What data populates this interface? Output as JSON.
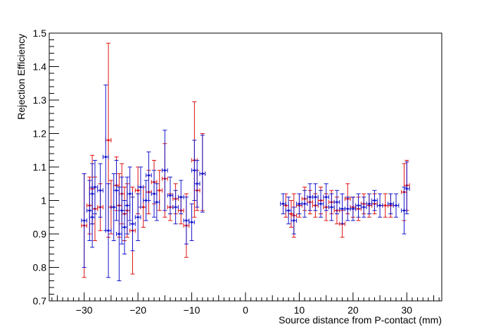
{
  "chart_data": {
    "type": "scatter",
    "title": "",
    "xlabel": "Source distance from P-contact (mm)",
    "ylabel": "Rejection Efficiency",
    "xlim": [
      -36.5,
      36.5
    ],
    "ylim": [
      0.7,
      1.5
    ],
    "x_ticks": [
      -30,
      -20,
      -10,
      0,
      10,
      20,
      30
    ],
    "x_tick_labels": [
      "−30",
      "−20",
      "−10",
      "0",
      "10",
      "20",
      "30"
    ],
    "y_ticks": [
      0.7,
      0.8,
      0.9,
      1.0,
      1.1,
      1.2,
      1.3,
      1.4,
      1.5
    ],
    "y_tick_labels": [
      "0.7",
      "0.8",
      "0.9",
      "1",
      "1.1",
      "1.2",
      "1.3",
      "1.4",
      "1.5"
    ],
    "grid": false,
    "legend": "none",
    "x_error": 0.5,
    "series": [
      {
        "color": "#dd1111",
        "points": [
          {
            "x": -30.0,
            "y": 0.925,
            "ylo": 0.77,
            "yhi": 1.08
          },
          {
            "x": -29.0,
            "y": 0.985,
            "ylo": 0.9,
            "yhi": 1.07
          },
          {
            "x": -28.5,
            "y": 1.035,
            "ylo": 0.93,
            "yhi": 1.135
          },
          {
            "x": -28.0,
            "y": 0.975,
            "ylo": 0.88,
            "yhi": 1.07
          },
          {
            "x": -27.0,
            "y": 0.98,
            "ylo": 0.91,
            "yhi": 1.05
          },
          {
            "x": -25.5,
            "y": 1.18,
            "ylo": 0.89,
            "yhi": 1.47
          },
          {
            "x": -25.0,
            "y": 0.98,
            "ylo": 0.9,
            "yhi": 1.06
          },
          {
            "x": -24.0,
            "y": 1.045,
            "ylo": 0.97,
            "yhi": 1.13
          },
          {
            "x": -23.5,
            "y": 0.985,
            "ylo": 0.89,
            "yhi": 1.08
          },
          {
            "x": -23.0,
            "y": 1.02,
            "ylo": 0.93,
            "yhi": 1.11
          },
          {
            "x": -22.5,
            "y": 0.96,
            "ylo": 0.88,
            "yhi": 1.04
          },
          {
            "x": -22.0,
            "y": 0.97,
            "ylo": 0.89,
            "yhi": 1.05
          },
          {
            "x": -21.0,
            "y": 0.91,
            "ylo": 0.78,
            "yhi": 1.04
          },
          {
            "x": -20.0,
            "y": 1.03,
            "ylo": 0.96,
            "yhi": 1.1
          },
          {
            "x": -19.0,
            "y": 0.98,
            "ylo": 0.92,
            "yhi": 1.04
          },
          {
            "x": -18.0,
            "y": 1.025,
            "ylo": 0.96,
            "yhi": 1.09
          },
          {
            "x": -17.0,
            "y": 1.055,
            "ylo": 0.99,
            "yhi": 1.12
          },
          {
            "x": -16.0,
            "y": 1.03,
            "ylo": 0.97,
            "yhi": 1.09
          },
          {
            "x": -15.0,
            "y": 1.065,
            "ylo": 0.95,
            "yhi": 1.17
          },
          {
            "x": -14.0,
            "y": 0.98,
            "ylo": 0.94,
            "yhi": 1.02
          },
          {
            "x": -13.0,
            "y": 1.005,
            "ylo": 0.96,
            "yhi": 1.05
          },
          {
            "x": -12.0,
            "y": 0.97,
            "ylo": 0.93,
            "yhi": 1.01
          },
          {
            "x": -11.0,
            "y": 0.925,
            "ylo": 0.83,
            "yhi": 1.02
          },
          {
            "x": -9.5,
            "y": 1.12,
            "ylo": 0.95,
            "yhi": 1.295
          },
          {
            "x": -9.0,
            "y": 1.03,
            "ylo": 0.97,
            "yhi": 1.09
          },
          {
            "x": -8.0,
            "y": 1.08,
            "ylo": 0.97,
            "yhi": 1.2
          },
          {
            "x": 7.5,
            "y": 0.985,
            "ylo": 0.95,
            "yhi": 1.02
          },
          {
            "x": 8.5,
            "y": 0.96,
            "ylo": 0.92,
            "yhi": 1.0
          },
          {
            "x": 9.0,
            "y": 0.955,
            "ylo": 0.89,
            "yhi": 1.02
          },
          {
            "x": 10.0,
            "y": 0.985,
            "ylo": 0.95,
            "yhi": 1.02
          },
          {
            "x": 11.0,
            "y": 1.005,
            "ylo": 0.97,
            "yhi": 1.04
          },
          {
            "x": 12.0,
            "y": 0.995,
            "ylo": 0.96,
            "yhi": 1.03
          },
          {
            "x": 13.0,
            "y": 0.985,
            "ylo": 0.95,
            "yhi": 1.02
          },
          {
            "x": 14.0,
            "y": 1.0,
            "ylo": 0.96,
            "yhi": 1.04
          },
          {
            "x": 15.0,
            "y": 0.98,
            "ylo": 0.94,
            "yhi": 1.02
          },
          {
            "x": 16.0,
            "y": 0.995,
            "ylo": 0.96,
            "yhi": 1.03
          },
          {
            "x": 17.0,
            "y": 0.97,
            "ylo": 0.93,
            "yhi": 1.01
          },
          {
            "x": 18.0,
            "y": 0.93,
            "ylo": 0.89,
            "yhi": 0.97
          },
          {
            "x": 19.0,
            "y": 1.005,
            "ylo": 0.96,
            "yhi": 1.05
          },
          {
            "x": 20.0,
            "y": 0.98,
            "ylo": 0.95,
            "yhi": 1.01
          },
          {
            "x": 21.0,
            "y": 0.975,
            "ylo": 0.94,
            "yhi": 1.01
          },
          {
            "x": 22.0,
            "y": 0.99,
            "ylo": 0.96,
            "yhi": 1.02
          },
          {
            "x": 23.0,
            "y": 0.985,
            "ylo": 0.95,
            "yhi": 1.02
          },
          {
            "x": 24.0,
            "y": 0.99,
            "ylo": 0.96,
            "yhi": 1.02
          },
          {
            "x": 26.0,
            "y": 0.985,
            "ylo": 0.95,
            "yhi": 1.02
          },
          {
            "x": 27.0,
            "y": 0.985,
            "ylo": 0.95,
            "yhi": 1.02
          },
          {
            "x": 29.5,
            "y": 1.025,
            "ylo": 0.94,
            "yhi": 1.11
          },
          {
            "x": 30.0,
            "y": 1.045,
            "ylo": 0.97,
            "yhi": 1.12
          }
        ]
      },
      {
        "color": "#1515cc",
        "points": [
          {
            "x": -30.0,
            "y": 0.94,
            "ylo": 0.8,
            "yhi": 1.08
          },
          {
            "x": -29.0,
            "y": 0.97,
            "ylo": 0.88,
            "yhi": 1.06
          },
          {
            "x": -28.5,
            "y": 1.02,
            "ylo": 0.93,
            "yhi": 1.11
          },
          {
            "x": -28.0,
            "y": 1.04,
            "ylo": 0.96,
            "yhi": 1.12
          },
          {
            "x": -28.5,
            "y": 0.95,
            "ylo": 0.86,
            "yhi": 1.04
          },
          {
            "x": -27.0,
            "y": 1.03,
            "ylo": 0.95,
            "yhi": 1.11
          },
          {
            "x": -26.0,
            "y": 1.13,
            "ylo": 0.91,
            "yhi": 1.345
          },
          {
            "x": -25.5,
            "y": 0.91,
            "ylo": 0.77,
            "yhi": 1.05
          },
          {
            "x": -24.5,
            "y": 0.98,
            "ylo": 0.88,
            "yhi": 1.08
          },
          {
            "x": -24.0,
            "y": 1.03,
            "ylo": 0.94,
            "yhi": 1.12
          },
          {
            "x": -23.5,
            "y": 0.9,
            "ylo": 0.76,
            "yhi": 1.04
          },
          {
            "x": -23.0,
            "y": 0.97,
            "ylo": 0.87,
            "yhi": 1.07
          },
          {
            "x": -22.5,
            "y": 0.92,
            "ylo": 0.84,
            "yhi": 1.0
          },
          {
            "x": -22.0,
            "y": 0.985,
            "ylo": 0.9,
            "yhi": 1.07
          },
          {
            "x": -21.5,
            "y": 1.02,
            "ylo": 0.94,
            "yhi": 1.1
          },
          {
            "x": -21.0,
            "y": 0.93,
            "ylo": 0.85,
            "yhi": 1.01
          },
          {
            "x": -20.0,
            "y": 0.95,
            "ylo": 0.88,
            "yhi": 1.02
          },
          {
            "x": -19.5,
            "y": 1.04,
            "ylo": 0.98,
            "yhi": 1.1
          },
          {
            "x": -18.5,
            "y": 1.0,
            "ylo": 0.94,
            "yhi": 1.06
          },
          {
            "x": -18.0,
            "y": 1.075,
            "ylo": 1.0,
            "yhi": 1.145
          },
          {
            "x": -17.0,
            "y": 1.02,
            "ylo": 0.95,
            "yhi": 1.09
          },
          {
            "x": -16.5,
            "y": 0.995,
            "ylo": 0.94,
            "yhi": 1.05
          },
          {
            "x": -15.0,
            "y": 1.09,
            "ylo": 0.97,
            "yhi": 1.21
          },
          {
            "x": -14.0,
            "y": 1.015,
            "ylo": 0.96,
            "yhi": 1.07
          },
          {
            "x": -13.0,
            "y": 0.98,
            "ylo": 0.93,
            "yhi": 1.03
          },
          {
            "x": -12.0,
            "y": 1.01,
            "ylo": 0.96,
            "yhi": 1.06
          },
          {
            "x": -11.0,
            "y": 0.94,
            "ylo": 0.87,
            "yhi": 1.01
          },
          {
            "x": -10.0,
            "y": 0.935,
            "ylo": 0.88,
            "yhi": 0.99
          },
          {
            "x": -9.5,
            "y": 1.09,
            "ylo": 1.0,
            "yhi": 1.18
          },
          {
            "x": -9.0,
            "y": 1.05,
            "ylo": 0.98,
            "yhi": 1.12
          },
          {
            "x": -8.0,
            "y": 1.08,
            "ylo": 0.965,
            "yhi": 1.195
          },
          {
            "x": 7.0,
            "y": 0.99,
            "ylo": 0.96,
            "yhi": 1.02
          },
          {
            "x": 8.0,
            "y": 0.97,
            "ylo": 0.93,
            "yhi": 1.01
          },
          {
            "x": 9.0,
            "y": 0.94,
            "ylo": 0.9,
            "yhi": 0.98
          },
          {
            "x": 10.0,
            "y": 0.99,
            "ylo": 0.96,
            "yhi": 1.02
          },
          {
            "x": 11.0,
            "y": 0.99,
            "ylo": 0.95,
            "yhi": 1.03
          },
          {
            "x": 12.0,
            "y": 1.01,
            "ylo": 0.97,
            "yhi": 1.05
          },
          {
            "x": 13.0,
            "y": 1.01,
            "ylo": 0.97,
            "yhi": 1.05
          },
          {
            "x": 14.0,
            "y": 0.99,
            "ylo": 0.95,
            "yhi": 1.03
          },
          {
            "x": 15.0,
            "y": 1.01,
            "ylo": 0.97,
            "yhi": 1.05
          },
          {
            "x": 16.0,
            "y": 0.98,
            "ylo": 0.94,
            "yhi": 1.02
          },
          {
            "x": 17.0,
            "y": 0.995,
            "ylo": 0.96,
            "yhi": 1.03
          },
          {
            "x": 18.0,
            "y": 0.975,
            "ylo": 0.93,
            "yhi": 1.02
          },
          {
            "x": 19.0,
            "y": 0.975,
            "ylo": 0.94,
            "yhi": 1.01
          },
          {
            "x": 20.0,
            "y": 0.975,
            "ylo": 0.94,
            "yhi": 1.01
          },
          {
            "x": 21.0,
            "y": 0.985,
            "ylo": 0.95,
            "yhi": 1.02
          },
          {
            "x": 22.0,
            "y": 0.98,
            "ylo": 0.95,
            "yhi": 1.01
          },
          {
            "x": 23.0,
            "y": 0.99,
            "ylo": 0.96,
            "yhi": 1.02
          },
          {
            "x": 24.0,
            "y": 1.0,
            "ylo": 0.97,
            "yhi": 1.03
          },
          {
            "x": 25.0,
            "y": 0.985,
            "ylo": 0.95,
            "yhi": 1.02
          },
          {
            "x": 27.0,
            "y": 0.99,
            "ylo": 0.96,
            "yhi": 1.02
          },
          {
            "x": 28.0,
            "y": 0.985,
            "ylo": 0.95,
            "yhi": 1.02
          },
          {
            "x": 29.5,
            "y": 0.97,
            "ylo": 0.9,
            "yhi": 1.04
          },
          {
            "x": 30.0,
            "y": 1.035,
            "ylo": 0.96,
            "yhi": 1.115
          }
        ]
      }
    ]
  }
}
